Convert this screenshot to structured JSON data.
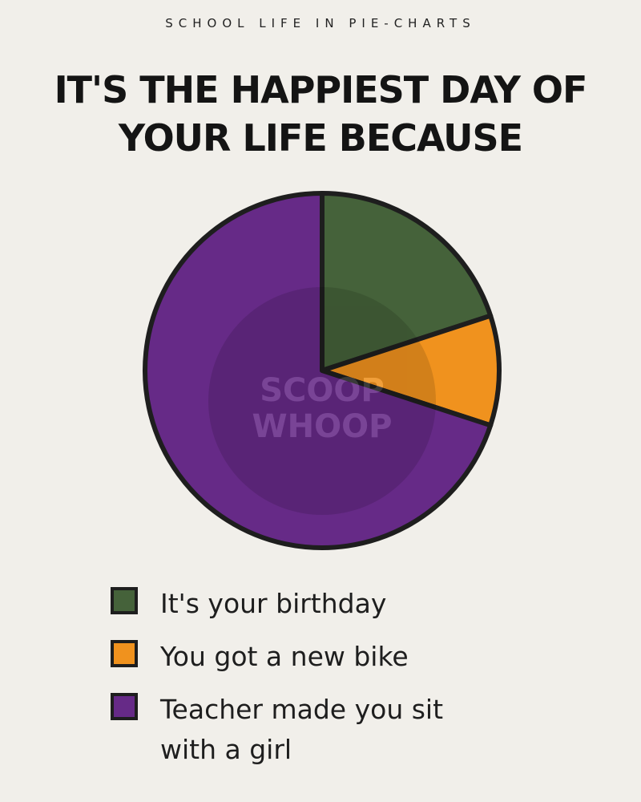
{
  "header": {
    "kicker": "SCHOOL LIFE IN PIE-CHARTS"
  },
  "watermark": "SCOOP WHOOP",
  "chart_data": {
    "type": "pie",
    "title": "IT'S THE HAPPIEST DAY OF YOUR LIFE BECAUSE",
    "start_angle": "12 o'clock, clockwise",
    "legend_position": "bottom",
    "slices": [
      {
        "label": "It's your birthday",
        "value": 20,
        "color": "#45623a"
      },
      {
        "label": "You got a new bike",
        "value": 10,
        "color": "#f0921e"
      },
      {
        "label": "Teacher made you sit with a girl",
        "value": 70,
        "color": "#662a87"
      }
    ]
  }
}
